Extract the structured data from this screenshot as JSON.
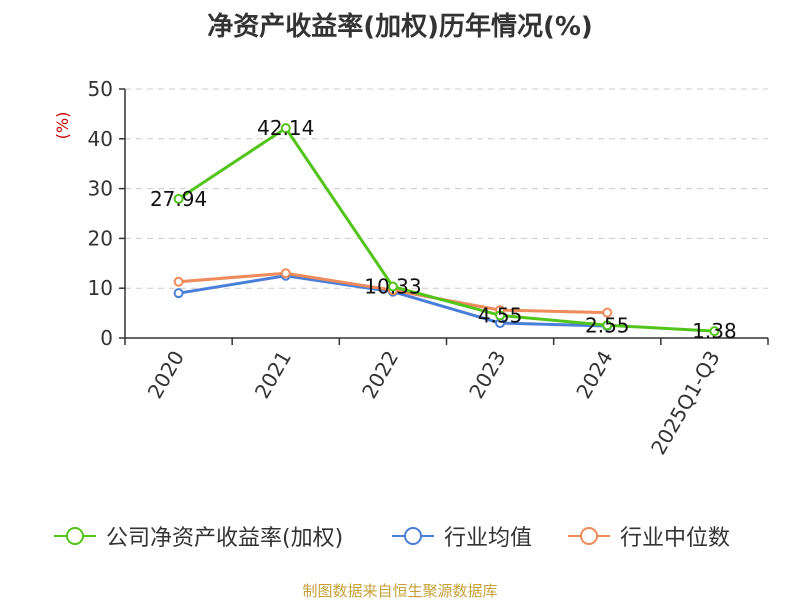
{
  "chart_data": {
    "type": "line",
    "title": "净资产收益率(加权)历年情况(%)",
    "ylabel": "(%)",
    "ylim": [
      0,
      50
    ],
    "yticks": [
      0,
      10,
      20,
      30,
      40,
      50
    ],
    "categories": [
      "2020",
      "2021",
      "2022",
      "2023",
      "2024",
      "2025Q1-Q3"
    ],
    "grid": true,
    "legend_position": "bottom",
    "series": [
      {
        "name": "公司净资产收益率(加权)",
        "values": [
          27.94,
          42.14,
          10.33,
          4.55,
          2.55,
          1.38
        ],
        "color": "#52c41a",
        "labels": [
          "27.94",
          "42.14",
          "10.33",
          "4.55",
          "2.55",
          "1.38"
        ]
      },
      {
        "name": "行业均值",
        "values": [
          9.0,
          12.5,
          9.3,
          3.0,
          2.4,
          null
        ],
        "color": "#4a7fd9"
      },
      {
        "name": "行业中位数",
        "values": [
          11.3,
          13.0,
          9.6,
          5.6,
          5.1,
          null
        ],
        "color": "#ef8a5a"
      }
    ],
    "source": "制图数据来自恒生聚源数据库"
  }
}
